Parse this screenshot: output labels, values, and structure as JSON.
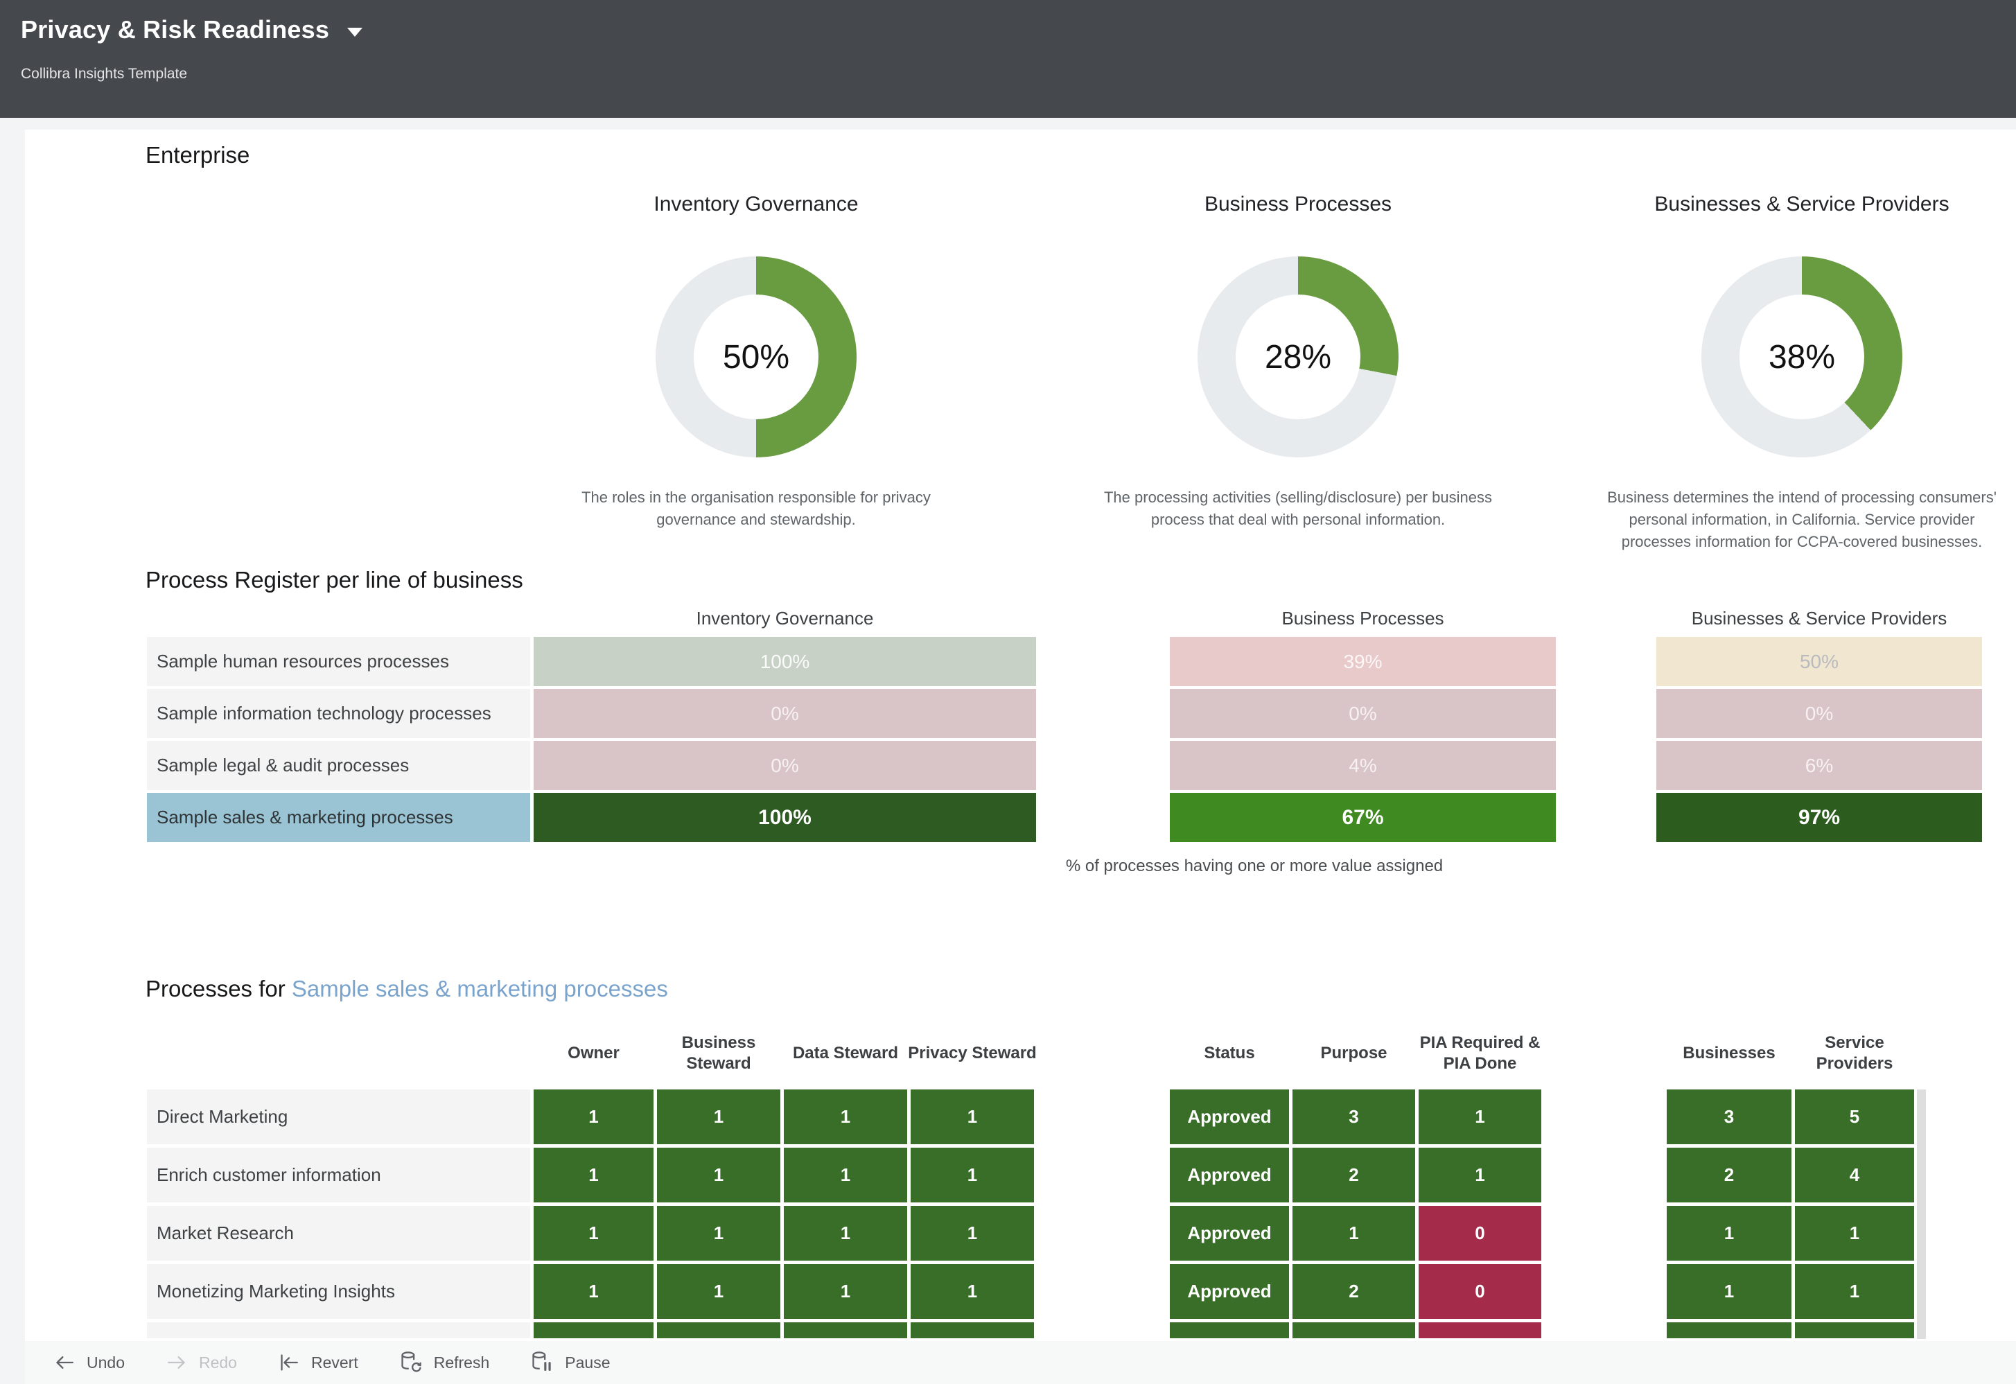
{
  "header": {
    "title": "Privacy & Risk Readiness",
    "subtitle": "Collibra Insights Template"
  },
  "enterprise": {
    "title": "Enterprise"
  },
  "colors": {
    "donut_green": "#699b41",
    "donut_track": "#e8ebee",
    "cell_green": "#386e27",
    "cell_red": "#a52b4b",
    "selected_row_blue": "#9ac4d4",
    "link_blue": "#7ba4cc",
    "topbar_gray": "#45484d"
  },
  "chart_data": [
    {
      "type": "pie",
      "title": "Inventory Governance",
      "value": 50,
      "value_label": "50%",
      "caption": "The roles in the organisation responsible for privacy governance and stewardship."
    },
    {
      "type": "pie",
      "title": "Business Processes",
      "value": 28,
      "value_label": "28%",
      "caption": "The processing activities (selling/disclosure) per business process that deal with personal information."
    },
    {
      "type": "pie",
      "title": "Businesses & Service Providers",
      "value": 38,
      "value_label": "38%",
      "caption": "Business determines the intend of processing consumers' personal information, in California. Service provider processes information for CCPA-covered businesses."
    }
  ],
  "process_register": {
    "title": "Process Register per line of business",
    "columns": [
      "Inventory Governance",
      "Business Processes",
      "Businesses & Service Providers"
    ],
    "rows": [
      {
        "label": "Sample human resources processes",
        "selected": false,
        "cells": [
          {
            "text": "100%",
            "bg": "#c7d1c6",
            "fg": "#fbfbfb",
            "bold": false
          },
          {
            "text": "39%",
            "bg": "#e9caca",
            "fg": "#fdf6f6",
            "bold": false
          },
          {
            "text": "50%",
            "bg": "#f1e7d1",
            "fg": "#b9babd",
            "bold": false
          }
        ]
      },
      {
        "label": "Sample information technology processes",
        "selected": false,
        "cells": [
          {
            "text": "0%",
            "bg": "#d9c4c8",
            "fg": "#f8f1f3",
            "bold": false
          },
          {
            "text": "0%",
            "bg": "#d9c4c8",
            "fg": "#f8f1f3",
            "bold": false
          },
          {
            "text": "0%",
            "bg": "#d9c4c8",
            "fg": "#f8f1f3",
            "bold": false
          }
        ]
      },
      {
        "label": "Sample legal & audit processes",
        "selected": false,
        "cells": [
          {
            "text": "0%",
            "bg": "#d9c4c8",
            "fg": "#f8f1f3",
            "bold": false
          },
          {
            "text": "4%",
            "bg": "#d9c4c8",
            "fg": "#f8f1f3",
            "bold": false
          },
          {
            "text": "6%",
            "bg": "#d9c4c8",
            "fg": "#f8f1f3",
            "bold": false
          }
        ]
      },
      {
        "label": "Sample sales & marketing processes",
        "selected": true,
        "cells": [
          {
            "text": "100%",
            "bg": "#2e5b22",
            "fg": "#ffffff",
            "bold": true
          },
          {
            "text": "67%",
            "bg": "#3f8a21",
            "fg": "#ffffff",
            "bold": true
          },
          {
            "text": "97%",
            "bg": "#2c5c1e",
            "fg": "#ffffff",
            "bold": true
          }
        ]
      }
    ],
    "footnote": "% of processes having one or more value assigned"
  },
  "processes": {
    "title_prefix": "Processes for ",
    "title_link": "Sample sales & marketing processes",
    "columns": [
      "Owner",
      "Business Steward",
      "Data Steward",
      "Privacy Steward",
      "Status",
      "Purpose",
      "PIA Required & PIA Done",
      "Businesses",
      "Service Providers"
    ],
    "rows": [
      {
        "label": "Direct Marketing",
        "cells": [
          {
            "text": "1",
            "color": "green"
          },
          {
            "text": "1",
            "color": "green"
          },
          {
            "text": "1",
            "color": "green"
          },
          {
            "text": "1",
            "color": "green"
          },
          {
            "text": "Approved",
            "color": "green"
          },
          {
            "text": "3",
            "color": "green"
          },
          {
            "text": "1",
            "color": "green"
          },
          {
            "text": "3",
            "color": "green"
          },
          {
            "text": "5",
            "color": "green"
          }
        ]
      },
      {
        "label": "Enrich customer information",
        "cells": [
          {
            "text": "1",
            "color": "green"
          },
          {
            "text": "1",
            "color": "green"
          },
          {
            "text": "1",
            "color": "green"
          },
          {
            "text": "1",
            "color": "green"
          },
          {
            "text": "Approved",
            "color": "green"
          },
          {
            "text": "2",
            "color": "green"
          },
          {
            "text": "1",
            "color": "green"
          },
          {
            "text": "2",
            "color": "green"
          },
          {
            "text": "4",
            "color": "green"
          }
        ]
      },
      {
        "label": "Market Research",
        "cells": [
          {
            "text": "1",
            "color": "green"
          },
          {
            "text": "1",
            "color": "green"
          },
          {
            "text": "1",
            "color": "green"
          },
          {
            "text": "1",
            "color": "green"
          },
          {
            "text": "Approved",
            "color": "green"
          },
          {
            "text": "1",
            "color": "green"
          },
          {
            "text": "0",
            "color": "red"
          },
          {
            "text": "1",
            "color": "green"
          },
          {
            "text": "1",
            "color": "green"
          }
        ]
      },
      {
        "label": "Monetizing Marketing Insights",
        "cells": [
          {
            "text": "1",
            "color": "green"
          },
          {
            "text": "1",
            "color": "green"
          },
          {
            "text": "1",
            "color": "green"
          },
          {
            "text": "1",
            "color": "green"
          },
          {
            "text": "Approved",
            "color": "green"
          },
          {
            "text": "2",
            "color": "green"
          },
          {
            "text": "0",
            "color": "red"
          },
          {
            "text": "1",
            "color": "green"
          },
          {
            "text": "1",
            "color": "green"
          }
        ]
      },
      {
        "label": "",
        "cells": [
          {
            "text": "",
            "color": "green"
          },
          {
            "text": "",
            "color": "green"
          },
          {
            "text": "",
            "color": "green"
          },
          {
            "text": "",
            "color": "green"
          },
          {
            "text": "",
            "color": "green"
          },
          {
            "text": "",
            "color": "green"
          },
          {
            "text": "",
            "color": "red"
          },
          {
            "text": "",
            "color": "green"
          },
          {
            "text": "",
            "color": "green"
          }
        ]
      }
    ]
  },
  "toolbar": {
    "items": [
      {
        "icon": "arrow-left-icon",
        "label": "Undo",
        "disabled": false
      },
      {
        "icon": "arrow-right-icon",
        "label": "Redo",
        "disabled": true
      },
      {
        "icon": "bar-arrow-left-icon",
        "label": "Revert",
        "disabled": false
      },
      {
        "icon": "db-refresh-icon",
        "label": "Refresh",
        "disabled": false
      },
      {
        "icon": "db-pause-icon",
        "label": "Pause",
        "disabled": false
      }
    ]
  }
}
